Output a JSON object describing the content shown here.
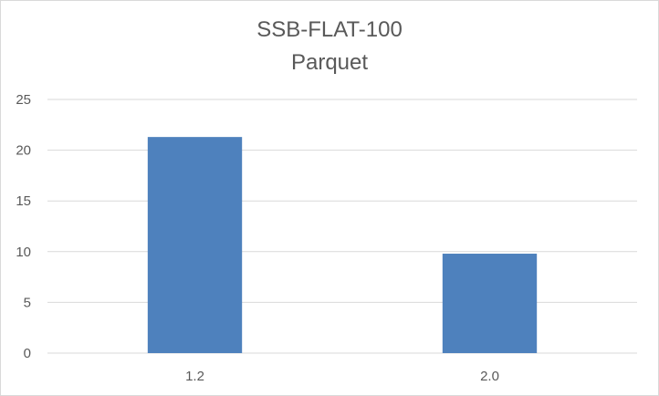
{
  "chart_data": {
    "type": "bar",
    "title": "SSB-FLAT-100",
    "subtitle": "Parquet",
    "categories": [
      "1.2",
      "2.0"
    ],
    "values": [
      21.3,
      9.8
    ],
    "ylim": [
      0,
      25
    ],
    "yticks": [
      0,
      5,
      10,
      15,
      20,
      25
    ],
    "grid": true,
    "legend": "none",
    "bar_color": "#4e81bd",
    "grid_color": "#d9d9d9",
    "text_color": "#595959"
  }
}
